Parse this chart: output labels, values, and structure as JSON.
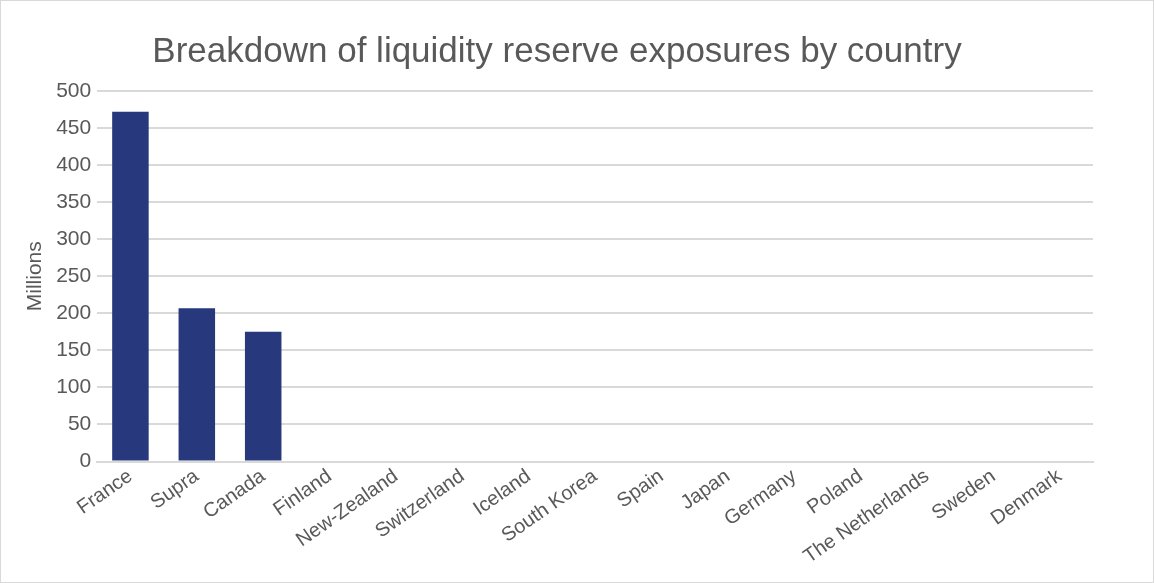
{
  "chart_data": {
    "type": "bar",
    "title": "Breakdown of liquidity reserve exposures by country",
    "ylabel": "Millions",
    "categories": [
      "France",
      "Supra",
      "Canada",
      "Finland",
      "New-Zealand",
      "Switzerland",
      "Iceland",
      "South Korea",
      "Spain",
      "Japan",
      "Germany",
      "Poland",
      "The Netherlands",
      "Sweden",
      "Denmark"
    ],
    "values": [
      472,
      207,
      175,
      0,
      0,
      0,
      0,
      0,
      0,
      0,
      0,
      0,
      0,
      0,
      0
    ],
    "color": "#27387d",
    "ylim": [
      0,
      500
    ],
    "yticks": [
      0,
      50,
      100,
      150,
      200,
      250,
      300,
      350,
      400,
      450,
      500
    ],
    "grid": "y",
    "legend": false
  }
}
